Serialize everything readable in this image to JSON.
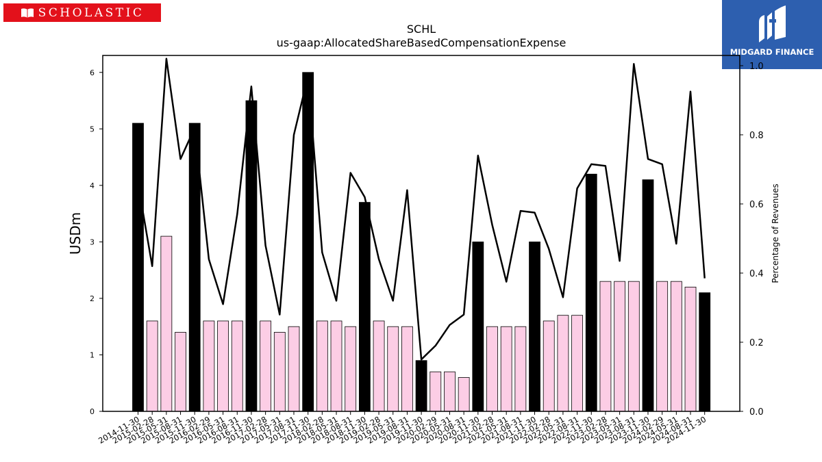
{
  "brand": {
    "left_logo_text": "SCHOLASTIC",
    "left_logo_color": "#e3111b",
    "right_logo_text": "MIDGARD FINANCE",
    "right_logo_color": "#2d5faf"
  },
  "chart_data": {
    "type": "bar",
    "title": "SCHL",
    "subtitle": "us-gaap:AllocatedShareBasedCompensationExpense",
    "ylabel": "USDm",
    "y2label": "Percentage of Revenues",
    "ylim": [
      0,
      6.3
    ],
    "y2lim": [
      0,
      1.0296
    ],
    "yticks": [
      0,
      1,
      2,
      3,
      4,
      5,
      6
    ],
    "y2ticks": [
      "0.0",
      "0.2",
      "0.4",
      "0.6",
      "0.8",
      "1.0"
    ],
    "grid": false,
    "legend": "none",
    "categories": [
      "2014-11-30",
      "2015-02-28",
      "2015-05-31",
      "2015-08-31",
      "2015-11-30",
      "2016-02-29",
      "2016-05-31",
      "2016-08-31",
      "2016-11-30",
      "2017-02-28",
      "2017-05-31",
      "2017-08-31",
      "2017-11-30",
      "2018-02-28",
      "2018-05-31",
      "2018-08-31",
      "2018-11-30",
      "2019-02-28",
      "2019-05-31",
      "2019-08-31",
      "2019-11-30",
      "2020-02-29",
      "2020-05-31",
      "2020-08-31",
      "2020-11-30",
      "2021-02-28",
      "2021-05-31",
      "2021-08-31",
      "2021-11-30",
      "2022-02-28",
      "2022-05-31",
      "2022-08-31",
      "2022-11-30",
      "2023-02-28",
      "2023-05-31",
      "2023-08-31",
      "2023-11-30",
      "2024-02-29",
      "2024-05-31",
      "2024-08-31",
      "2024-11-30"
    ],
    "bar_series": {
      "values": [
        5.1,
        1.6,
        3.1,
        1.4,
        5.1,
        1.6,
        1.6,
        1.6,
        5.5,
        1.6,
        1.4,
        1.5,
        6.0,
        1.6,
        1.6,
        1.5,
        3.7,
        1.6,
        1.5,
        1.5,
        0.9,
        0.7,
        0.7,
        0.6,
        3.0,
        1.5,
        1.5,
        1.5,
        3.0,
        1.6,
        1.7,
        1.7,
        4.2,
        2.3,
        2.3,
        2.3,
        4.1,
        2.3,
        2.3,
        2.2,
        2.1
      ],
      "colors": [
        "#000000",
        "#fccde5",
        "#fccde5",
        "#fccde5",
        "#000000",
        "#fccde5",
        "#fccde5",
        "#fccde5",
        "#000000",
        "#fccde5",
        "#fccde5",
        "#fccde5",
        "#000000",
        "#fccde5",
        "#fccde5",
        "#fccde5",
        "#000000",
        "#fccde5",
        "#fccde5",
        "#fccde5",
        "#000000",
        "#fccde5",
        "#fccde5",
        "#fccde5",
        "#000000",
        "#fccde5",
        "#fccde5",
        "#fccde5",
        "#000000",
        "#fccde5",
        "#fccde5",
        "#fccde5",
        "#000000",
        "#fccde5",
        "#fccde5",
        "#fccde5",
        "#000000",
        "#fccde5",
        "#fccde5",
        "#fccde5",
        "#000000"
      ]
    },
    "line_series": {
      "axis": "right",
      "color": "#000000",
      "values": [
        0.66,
        0.42,
        1.02,
        0.73,
        0.82,
        0.44,
        0.31,
        0.57,
        0.94,
        0.48,
        0.28,
        0.8,
        0.97,
        0.46,
        0.32,
        0.69,
        0.62,
        0.44,
        0.32,
        0.64,
        0.15,
        0.19,
        0.25,
        0.28,
        0.74,
        0.54,
        0.375,
        0.58,
        0.575,
        0.47,
        0.33,
        0.645,
        0.715,
        0.71,
        0.435,
        1.005,
        0.73,
        0.715,
        0.485,
        0.925,
        0.385
      ]
    }
  }
}
